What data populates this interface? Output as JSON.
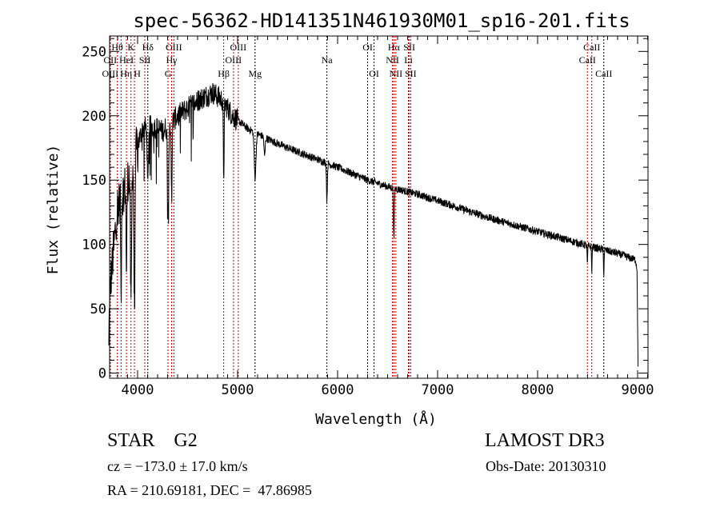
{
  "chart_data": {
    "type": "line",
    "title": "spec-56362-HD141351N461930M01_sp16-201.fits",
    "xlabel": "Wavelength (Å)",
    "ylabel": "Flux (relative)",
    "xlim": [
      3720,
      9104
    ],
    "ylim": [
      -4,
      262
    ],
    "x_ticks": [
      4000,
      5000,
      6000,
      7000,
      8000,
      9000
    ],
    "x_tick_labels": [
      "4000",
      "5000",
      "6000",
      "7000",
      "8000",
      "9000"
    ],
    "y_ticks": [
      0,
      50,
      100,
      150,
      200,
      250
    ],
    "y_tick_labels": [
      "0",
      "50",
      "100",
      "150",
      "200",
      "250"
    ],
    "grid": false,
    "series": [
      {
        "name": "flux",
        "continuum": [
          [
            3710,
            0
          ],
          [
            3715,
            40
          ],
          [
            3730,
            70
          ],
          [
            3800,
            130
          ],
          [
            3900,
            150
          ],
          [
            3990,
            175
          ],
          [
            4050,
            190
          ],
          [
            4150,
            192
          ],
          [
            4250,
            188
          ],
          [
            4400,
            200
          ],
          [
            4600,
            212
          ],
          [
            4750,
            218
          ],
          [
            4850,
            212
          ],
          [
            4950,
            200
          ],
          [
            5100,
            190
          ],
          [
            5300,
            182
          ],
          [
            5500,
            175
          ],
          [
            5800,
            166
          ],
          [
            6000,
            160
          ],
          [
            6300,
            150
          ],
          [
            6500,
            145
          ],
          [
            6800,
            139
          ],
          [
            7000,
            134
          ],
          [
            7500,
            121
          ],
          [
            8000,
            110
          ],
          [
            8500,
            99
          ],
          [
            8800,
            93
          ],
          [
            8980,
            88
          ],
          [
            8995,
            80
          ],
          [
            9005,
            0
          ]
        ],
        "absorption": [
          [
            3934,
            110,
            8
          ],
          [
            3968,
            120,
            8
          ],
          [
            3889,
            70,
            6
          ],
          [
            3835,
            80,
            5
          ],
          [
            4102,
            45,
            8
          ],
          [
            4304,
            70,
            8
          ],
          [
            4340,
            55,
            7
          ],
          [
            4861,
            55,
            6
          ],
          [
            5175,
            35,
            12
          ],
          [
            5270,
            15,
            8
          ],
          [
            5893,
            30,
            6
          ],
          [
            6563,
            40,
            6
          ],
          [
            8498,
            15,
            4
          ],
          [
            8542,
            18,
            4
          ],
          [
            8662,
            18,
            4
          ]
        ],
        "noise_amplitude": 3
      }
    ],
    "lines": [
      {
        "label": "Hθ",
        "wave": 3797,
        "row": 0,
        "color": "#cc0000"
      },
      {
        "label": "K",
        "wave": 3934,
        "row": 0,
        "color": "#cc0000"
      },
      {
        "label": "Hδ",
        "wave": 4102,
        "row": 0,
        "color": "#000000"
      },
      {
        "label": "OIII",
        "wave": 4363,
        "row": 0,
        "color": "#cc0000"
      },
      {
        "label": "OIII",
        "wave": 5007,
        "row": 0,
        "color": "#cc0000"
      },
      {
        "label": "OI",
        "wave": 6300,
        "row": 0,
        "color": "#000000"
      },
      {
        "label": "Hα",
        "wave": 6563,
        "row": 0,
        "color": "#cc0000"
      },
      {
        "label": "SII",
        "wave": 6717,
        "row": 0,
        "color": "#cc0000"
      },
      {
        "label": "CaII",
        "wave": 8542,
        "row": 0,
        "color": "#cc0000"
      },
      {
        "label": "OII",
        "wave": 3727,
        "row": 1,
        "color": "#cc0000"
      },
      {
        "label": "HeI",
        "wave": 3889,
        "row": 1,
        "color": "#cc0000"
      },
      {
        "label": "SII",
        "wave": 4072,
        "row": 1,
        "color": "#cc0000"
      },
      {
        "label": "Hγ",
        "wave": 4340,
        "row": 1,
        "color": "#cc0000"
      },
      {
        "label": "OIII",
        "wave": 4959,
        "row": 1,
        "color": "#cc0000"
      },
      {
        "label": "Na",
        "wave": 5893,
        "row": 1,
        "color": "#000000"
      },
      {
        "label": "NII",
        "wave": 6548,
        "row": 1,
        "color": "#cc0000"
      },
      {
        "label": "Li",
        "wave": 6708,
        "row": 1,
        "color": "#cc0000"
      },
      {
        "label": "CaII",
        "wave": 8498,
        "row": 1,
        "color": "#cc0000"
      },
      {
        "label": "OIII",
        "wave": 3727,
        "row": 2,
        "color": "#cc0000"
      },
      {
        "label": "Hη",
        "wave": 3835,
        "row": 2,
        "color": "#cc0000"
      },
      {
        "label": "H",
        "wave": 3968,
        "row": 2,
        "color": "#cc0000"
      },
      {
        "label": "G",
        "wave": 4304,
        "row": 2,
        "color": "#cc0000"
      },
      {
        "label": "Hβ",
        "wave": 4861,
        "row": 2,
        "color": "#cc0000"
      },
      {
        "label": "Mg",
        "wave": 5175,
        "row": 2,
        "color": "#000000"
      },
      {
        "label": "OI",
        "wave": 6364,
        "row": 2,
        "color": "#000000"
      },
      {
        "label": "NII",
        "wave": 6583,
        "row": 2,
        "color": "#cc0000"
      },
      {
        "label": "SII",
        "wave": 6731,
        "row": 2,
        "color": "#cc0000"
      },
      {
        "label": "CaII",
        "wave": 8662,
        "row": 2,
        "color": "#000000"
      }
    ]
  },
  "info": {
    "class": "STAR    G2",
    "survey": "LAMOST DR3",
    "cz": "cz = −173.0 ± 17.0 km/s",
    "obs_date": "Obs-Date: 20130310",
    "coords": "RA = 210.69181, DEC =  47.86985"
  }
}
